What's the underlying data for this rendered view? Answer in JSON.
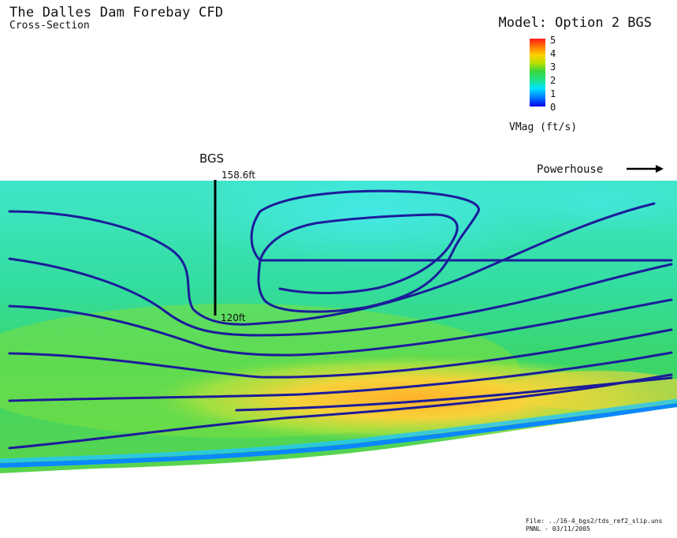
{
  "header": {
    "title": "The Dalles Dam Forebay CFD",
    "subtitle": "Cross-Section",
    "model": "Model: Option 2 BGS"
  },
  "legend": {
    "ticks": [
      "5",
      "4",
      "3",
      "2",
      "1",
      "0"
    ],
    "units": "VMag (ft/s)",
    "colors": [
      "#0000e6",
      "#0070ff",
      "#00e5ff",
      "#39d63b",
      "#ffd000",
      "#ff1a1a"
    ]
  },
  "annotations": {
    "bgs": "BGS",
    "bgs_top": "158.6ft",
    "bgs_bottom": "120ft",
    "powerhouse": "Powerhouse"
  },
  "footer": {
    "file": "File: ../16-4_bgs2/tds_ref2_slip.uns",
    "credit": "PNNL - 03/11/2005"
  },
  "colors": {
    "streamline": "#1c1c9a",
    "slow": "#3de6e0",
    "mid": "#3ad85a",
    "fast": "#f5b82a"
  }
}
